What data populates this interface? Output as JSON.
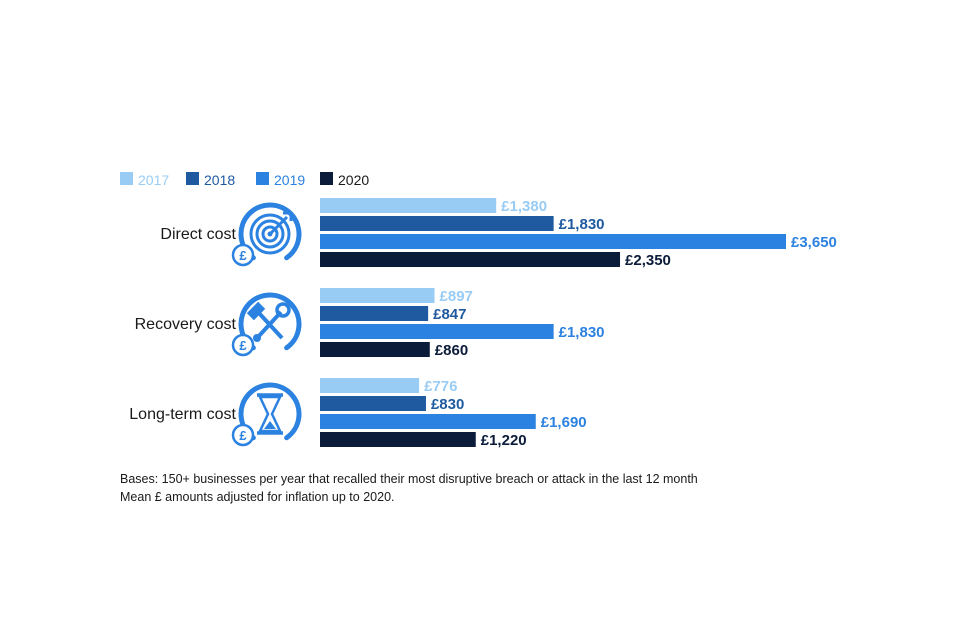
{
  "chart_data": {
    "type": "bar",
    "orientation": "horizontal",
    "categories": [
      "Direct cost",
      "Recovery cost",
      "Long-term cost"
    ],
    "category_icons": [
      "target-icon",
      "tools-icon",
      "hourglass-icon"
    ],
    "series": [
      {
        "name": "2017",
        "color": "#99ccf5",
        "values": [
          1380,
          897,
          776
        ],
        "labels": [
          "£1,380",
          "£897",
          "£776"
        ]
      },
      {
        "name": "2018",
        "color": "#1f5aa0",
        "values": [
          1830,
          847,
          830
        ],
        "labels": [
          "£1,830",
          "£847",
          "£830"
        ]
      },
      {
        "name": "2019",
        "color": "#2b82e0",
        "values": [
          3650,
          1830,
          1690
        ],
        "labels": [
          "£3,650",
          "£1,830",
          "£1,690"
        ]
      },
      {
        "name": "2020",
        "color": "#0b1c3a",
        "values": [
          2350,
          860,
          1220
        ],
        "labels": [
          "£2,350",
          "£860",
          "£1,220"
        ]
      }
    ],
    "legend_position": "top-left",
    "grid": false,
    "xlim": [
      0,
      3650
    ]
  },
  "notes": [
    "Bases: 150+ businesses per year that recalled their most disruptive breach or attack in the last 12 month",
    "Mean £ amounts adjusted for inflation up to 2020."
  ],
  "icon_color": "#2b82e0",
  "currency_badge_symbol": "£"
}
